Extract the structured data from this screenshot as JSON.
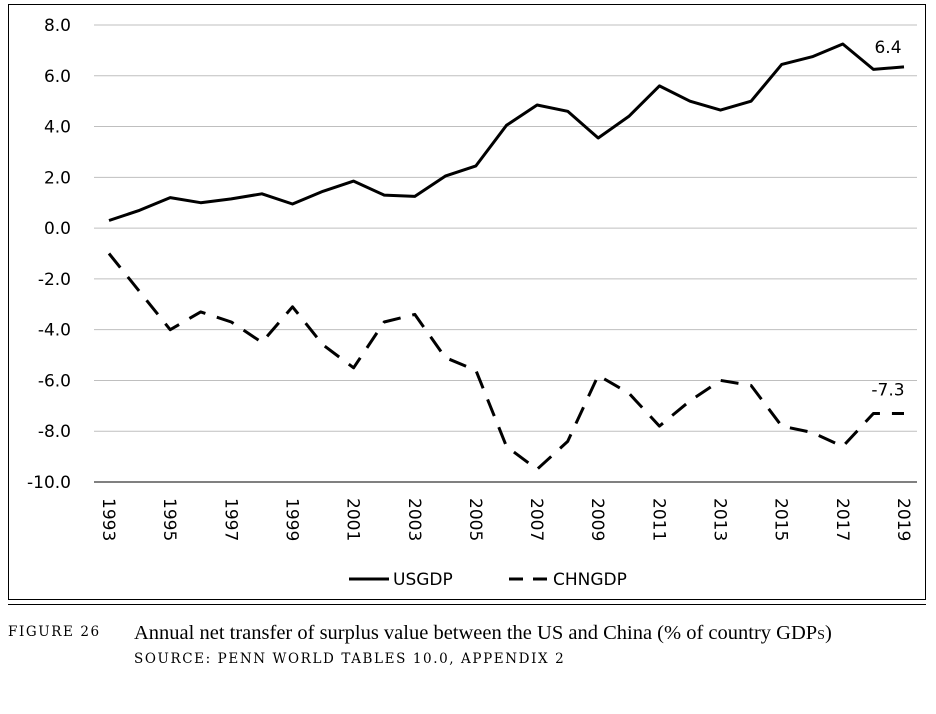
{
  "chart_data": {
    "type": "line",
    "title": "",
    "xlabel": "",
    "ylabel": "",
    "x": [
      1993,
      1994,
      1995,
      1996,
      1997,
      1998,
      1999,
      2000,
      2001,
      2002,
      2003,
      2004,
      2005,
      2006,
      2007,
      2008,
      2009,
      2010,
      2011,
      2012,
      2013,
      2014,
      2015,
      2016,
      2017,
      2018,
      2019
    ],
    "x_tick_labels": [
      "1993",
      "1995",
      "1997",
      "1999",
      "2001",
      "2003",
      "2005",
      "2007",
      "2009",
      "2011",
      "2013",
      "2015",
      "2017",
      "2019"
    ],
    "y_tick_labels": [
      "8.0",
      "6.0",
      "4.0",
      "2.0",
      "0.0",
      "-2.0",
      "-4.0",
      "-6.0",
      "-8.0",
      "-10.0"
    ],
    "ylim": [
      -10,
      8
    ],
    "grid": "horizontal",
    "legend_position": "bottom",
    "series": [
      {
        "name": "USGDP",
        "style": "solid",
        "color": "#000000",
        "values": [
          0.3,
          0.7,
          1.2,
          1.0,
          1.15,
          1.35,
          0.95,
          1.45,
          1.85,
          1.3,
          1.25,
          2.05,
          2.45,
          4.05,
          4.85,
          4.6,
          3.55,
          4.4,
          5.6,
          5.0,
          4.65,
          5.0,
          6.45,
          6.75,
          7.25,
          6.25,
          6.35
        ],
        "end_label": "6.4"
      },
      {
        "name": "CHNGDP",
        "style": "dashed",
        "color": "#000000",
        "values": [
          -1.0,
          -2.5,
          -4.0,
          -3.3,
          -3.7,
          -4.5,
          -3.1,
          -4.6,
          -5.5,
          -3.7,
          -3.4,
          -5.1,
          -5.6,
          -8.6,
          -9.5,
          -8.4,
          -5.8,
          -6.5,
          -7.8,
          -6.8,
          -6.0,
          -6.2,
          -7.8,
          -8.05,
          -8.6,
          -7.3,
          -7.3
        ],
        "end_label": "-7.3"
      }
    ]
  },
  "caption": {
    "figure_label": "Figure 26",
    "text_main": "Annual net transfer of surplus value between the US and China (% of country ",
    "text_smallcaps": "GDPs",
    "text_end": ")",
    "source": "Source: Penn World Tables 10.0, Appendix 2"
  }
}
